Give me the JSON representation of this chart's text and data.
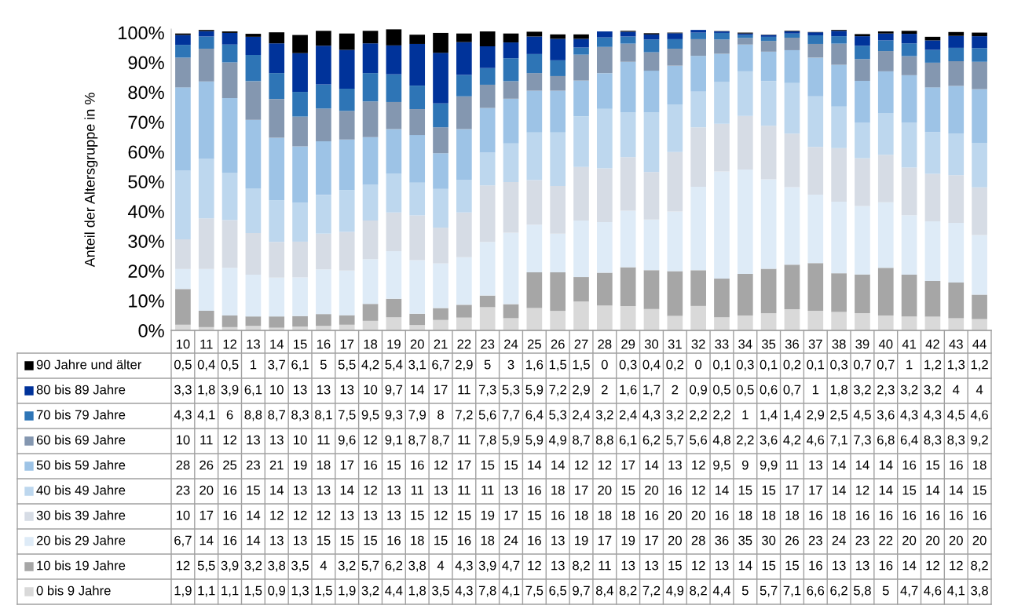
{
  "chart_data": {
    "type": "bar",
    "stacked": true,
    "ylabel": "Anteil der Altersgruppe in %",
    "categories": [
      "10",
      "11",
      "12",
      "13",
      "14",
      "15",
      "16",
      "17",
      "18",
      "19",
      "20",
      "21",
      "22",
      "23",
      "24",
      "25",
      "26",
      "27",
      "28",
      "29",
      "30",
      "31",
      "32",
      "33",
      "34",
      "35",
      "36",
      "37",
      "38",
      "39",
      "40",
      "41",
      "42",
      "43",
      "44"
    ],
    "ylim": [
      0,
      101.2
    ],
    "yticks": [
      {
        "value": 0,
        "label": "0%"
      },
      {
        "value": 10,
        "label": "10%"
      },
      {
        "value": 20,
        "label": "20%"
      },
      {
        "value": 30,
        "label": "30%"
      },
      {
        "value": 40,
        "label": "40%"
      },
      {
        "value": 50,
        "label": "50%"
      },
      {
        "value": 60,
        "label": "60%"
      },
      {
        "value": 70,
        "label": "70%"
      },
      {
        "value": 80,
        "label": "80%"
      },
      {
        "value": 90,
        "label": "90%"
      },
      {
        "value": 100,
        "label": "100%"
      }
    ],
    "legend": "bottom left",
    "series": [
      {
        "name": "0 bis 9 Jahre",
        "color": "#d9d9d9",
        "values": [
          1.9,
          1.1,
          1.1,
          1.5,
          0.9,
          1.3,
          1.5,
          1.9,
          3.2,
          4.4,
          1.8,
          3.5,
          4.3,
          7.8,
          4.1,
          7.5,
          6.5,
          9.7,
          8.4,
          8.2,
          7.2,
          4.9,
          8.2,
          4.4,
          5,
          5.7,
          7.1,
          6.6,
          6.2,
          5.8,
          5,
          4.7,
          4.6,
          4.1,
          3.8
        ],
        "value_labels": [
          "1,9",
          "1,1",
          "1,1",
          "1,5",
          "0,9",
          "1,3",
          "1,5",
          "1,9",
          "3,2",
          "4,4",
          "1,8",
          "3,5",
          "4,3",
          "7,8",
          "4,1",
          "7,5",
          "6,5",
          "9,7",
          "8,4",
          "8,2",
          "7,2",
          "4,9",
          "8,2",
          "4,4",
          "5",
          "5,7",
          "7,1",
          "6,6",
          "6,2",
          "5,8",
          "5",
          "4,7",
          "4,6",
          "4,1",
          "3,8"
        ]
      },
      {
        "name": "10 bis 19 Jahre",
        "color": "#a6a6a6",
        "values": [
          12,
          5.5,
          3.9,
          3.2,
          3.8,
          3.5,
          4,
          3.2,
          5.7,
          6.2,
          3.8,
          4,
          4.3,
          3.9,
          4.7,
          12,
          13,
          8.2,
          11,
          13,
          13,
          15,
          12,
          13,
          14,
          15,
          15,
          16,
          13,
          13,
          16,
          14,
          12,
          12,
          8.2
        ],
        "value_labels": [
          "12",
          "5,5",
          "3,9",
          "3,2",
          "3,8",
          "3,5",
          "4",
          "3,2",
          "5,7",
          "6,2",
          "3,8",
          "4",
          "4,3",
          "3,9",
          "4,7",
          "12",
          "13",
          "8,2",
          "11",
          "13",
          "13",
          "15",
          "12",
          "13",
          "14",
          "15",
          "15",
          "16",
          "13",
          "13",
          "16",
          "14",
          "12",
          "12",
          "8,2"
        ]
      },
      {
        "name": "20 bis 29 Jahre",
        "color": "#deebf7",
        "values": [
          6.7,
          14,
          16,
          14,
          13,
          13,
          15,
          15,
          15,
          16,
          18,
          15,
          16,
          18,
          24,
          16,
          13,
          19,
          17,
          19,
          17,
          20,
          28,
          36,
          35,
          30,
          26,
          23,
          24,
          23,
          22,
          20,
          20,
          20,
          20
        ],
        "value_labels": [
          "6,7",
          "14",
          "16",
          "14",
          "13",
          "13",
          "15",
          "15",
          "15",
          "16",
          "18",
          "15",
          "16",
          "18",
          "24",
          "16",
          "13",
          "19",
          "17",
          "19",
          "17",
          "20",
          "28",
          "36",
          "35",
          "30",
          "26",
          "23",
          "24",
          "23",
          "22",
          "20",
          "20",
          "20",
          "20"
        ]
      },
      {
        "name": "30 bis 39 Jahre",
        "color": "#d6dce5",
        "values": [
          10,
          17,
          16,
          14,
          12,
          12,
          12,
          13,
          13,
          13,
          15,
          12,
          15,
          19,
          17,
          15,
          16,
          18,
          18,
          18,
          16,
          20,
          20,
          16,
          18,
          18,
          18,
          16,
          18,
          16,
          16,
          16,
          16,
          16,
          16
        ],
        "value_labels": [
          "10",
          "17",
          "16",
          "14",
          "12",
          "12",
          "12",
          "13",
          "13",
          "13",
          "15",
          "12",
          "15",
          "19",
          "17",
          "15",
          "16",
          "18",
          "18",
          "18",
          "16",
          "20",
          "20",
          "16",
          "18",
          "18",
          "18",
          "16",
          "18",
          "16",
          "16",
          "16",
          "16",
          "16",
          "16"
        ]
      },
      {
        "name": "40 bis 49 Jahre",
        "color": "#bdd7ee",
        "values": [
          23,
          20,
          16,
          15,
          14,
          13,
          13,
          14,
          12,
          13,
          11,
          13,
          11,
          11,
          13,
          16,
          18,
          17,
          20,
          15,
          20,
          16,
          12,
          14,
          15,
          15,
          17,
          17,
          14,
          12,
          14,
          15,
          14,
          14,
          15
        ],
        "value_labels": [
          "23",
          "20",
          "16",
          "15",
          "14",
          "13",
          "13",
          "14",
          "12",
          "13",
          "11",
          "13",
          "11",
          "11",
          "13",
          "16",
          "18",
          "17",
          "20",
          "15",
          "20",
          "16",
          "12",
          "14",
          "15",
          "15",
          "17",
          "17",
          "14",
          "12",
          "14",
          "15",
          "14",
          "14",
          "15"
        ]
      },
      {
        "name": "50 bis 59 Jahre",
        "color": "#9dc3e6",
        "values": [
          28,
          26,
          25,
          23,
          21,
          19,
          18,
          17,
          16,
          15,
          16,
          12,
          17,
          15,
          15,
          14,
          14,
          12,
          12,
          17,
          14,
          13,
          12,
          9.5,
          9,
          9.9,
          11,
          13,
          14,
          14,
          14,
          16,
          15,
          16,
          18
        ],
        "value_labels": [
          "28",
          "26",
          "25",
          "23",
          "21",
          "19",
          "18",
          "17",
          "16",
          "15",
          "16",
          "12",
          "17",
          "15",
          "15",
          "14",
          "14",
          "12",
          "12",
          "17",
          "14",
          "13",
          "12",
          "9,5",
          "9",
          "9,9",
          "11",
          "13",
          "14",
          "14",
          "14",
          "16",
          "15",
          "16",
          "18"
        ]
      },
      {
        "name": "60 bis 69 Jahre",
        "color": "#8497b0",
        "values": [
          10,
          11,
          12,
          13,
          13,
          10,
          11,
          9.6,
          12,
          9.1,
          8.7,
          8.7,
          11,
          7.8,
          5.9,
          5.9,
          4.9,
          8.7,
          8.8,
          6.1,
          6.2,
          5.7,
          5.6,
          4.8,
          2.2,
          3.6,
          4.2,
          4.6,
          7.1,
          7.3,
          6.8,
          6.4,
          8.3,
          8.3,
          9.2
        ],
        "value_labels": [
          "10",
          "11",
          "12",
          "13",
          "13",
          "10",
          "11",
          "9,6",
          "12",
          "9,1",
          "8,7",
          "8,7",
          "11",
          "7,8",
          "5,9",
          "5,9",
          "4,9",
          "8,7",
          "8,8",
          "6,1",
          "6,2",
          "5,7",
          "5,6",
          "4,8",
          "2,2",
          "3,6",
          "4,2",
          "4,6",
          "7,1",
          "7,3",
          "6,8",
          "6,4",
          "8,3",
          "8,3",
          "9,2"
        ]
      },
      {
        "name": "70 bis 79 Jahre",
        "color": "#2e75b6",
        "values": [
          4.3,
          4.1,
          6,
          8.8,
          8.7,
          8.3,
          8.1,
          7.5,
          9.5,
          9.3,
          7.9,
          8,
          7.2,
          5.6,
          7.7,
          6.4,
          5.3,
          2.4,
          3.2,
          2.4,
          4.3,
          3.2,
          2.2,
          2.2,
          1,
          1.4,
          1.4,
          2.9,
          2.5,
          4.5,
          3.6,
          4.3,
          4.3,
          4.5,
          4.6
        ],
        "value_labels": [
          "4,3",
          "4,1",
          "6",
          "8,8",
          "8,7",
          "8,3",
          "8,1",
          "7,5",
          "9,5",
          "9,3",
          "7,9",
          "8",
          "7,2",
          "5,6",
          "7,7",
          "6,4",
          "5,3",
          "2,4",
          "3,2",
          "2,4",
          "4,3",
          "3,2",
          "2,2",
          "2,2",
          "1",
          "1,4",
          "1,4",
          "2,9",
          "2,5",
          "4,5",
          "3,6",
          "4,3",
          "4,3",
          "4,5",
          "4,6"
        ]
      },
      {
        "name": "80 bis 89 Jahre",
        "color": "#00339a",
        "values": [
          3.3,
          1.8,
          3.9,
          6.1,
          10,
          13,
          13,
          13,
          10,
          9.7,
          14,
          17,
          11,
          7.3,
          5.3,
          5.9,
          7.2,
          2.9,
          2,
          1.6,
          1.7,
          2,
          0.9,
          0.5,
          0.5,
          0.6,
          0.7,
          1,
          1.8,
          3.2,
          2.3,
          3.2,
          3.2,
          4,
          4
        ],
        "value_labels": [
          "3,3",
          "1,8",
          "3,9",
          "6,1",
          "10",
          "13",
          "13",
          "13",
          "10",
          "9,7",
          "14",
          "17",
          "11",
          "7,3",
          "5,3",
          "5,9",
          "7,2",
          "2,9",
          "2",
          "1,6",
          "1,7",
          "2",
          "0,9",
          "0,5",
          "0,5",
          "0,6",
          "0,7",
          "1",
          "1,8",
          "3,2",
          "2,3",
          "3,2",
          "3,2",
          "4",
          "4"
        ]
      },
      {
        "name": "90 Jahre und älter",
        "color": "#000000",
        "values": [
          0.5,
          0.4,
          0.5,
          1,
          3.7,
          6.1,
          5,
          5.5,
          4.2,
          5.4,
          3.1,
          6.7,
          2.9,
          5,
          3,
          1.6,
          1.5,
          1.5,
          0,
          0.3,
          0.4,
          0.2,
          0,
          0.1,
          0.3,
          0.1,
          0.2,
          0.1,
          0.3,
          0.7,
          0.7,
          1,
          1.2,
          1.3,
          1.2
        ],
        "value_labels": [
          "0,5",
          "0,4",
          "0,5",
          "1",
          "3,7",
          "6,1",
          "5",
          "5,5",
          "4,2",
          "5,4",
          "3,1",
          "6,7",
          "2,9",
          "5",
          "3",
          "1,6",
          "1,5",
          "1,5",
          "0",
          "0,3",
          "0,4",
          "0,2",
          "0",
          "0,1",
          "0,3",
          "0,1",
          "0,2",
          "0,1",
          "0,3",
          "0,7",
          "0,7",
          "1",
          "1,2",
          "1,3",
          "1,2"
        ]
      }
    ]
  }
}
